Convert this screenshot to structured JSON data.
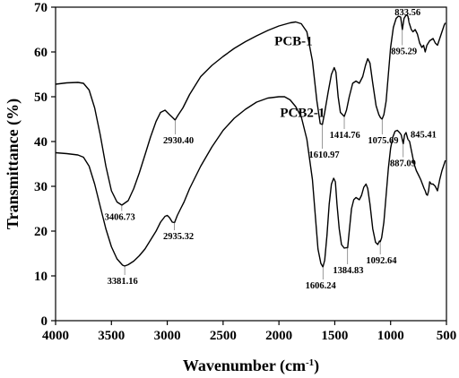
{
  "chart_data": {
    "type": "line",
    "xlabel": "Wavenumber (cm",
    "xlabel_sup": "-1",
    "xlabel_end": ")",
    "ylabel": "Transmittance (%)",
    "xlim": [
      4000,
      500
    ],
    "ylim": [
      0,
      70
    ],
    "x_ticks": [
      {
        "value": 4000,
        "label": "4000"
      },
      {
        "value": 3500,
        "label": "3500"
      },
      {
        "value": 3000,
        "label": "3000"
      },
      {
        "value": 2500,
        "label": "2500"
      },
      {
        "value": 2000,
        "label": "2000"
      },
      {
        "value": 1500,
        "label": "1500"
      },
      {
        "value": 1000,
        "label": "1000"
      },
      {
        "value": 500,
        "label": "500"
      }
    ],
    "y_ticks": [
      {
        "value": 0,
        "label": "0"
      },
      {
        "value": 10,
        "label": "10"
      },
      {
        "value": 20,
        "label": "20"
      },
      {
        "value": 30,
        "label": "30"
      },
      {
        "value": 40,
        "label": "40"
      },
      {
        "value": 50,
        "label": "50"
      },
      {
        "value": 60,
        "label": "60"
      },
      {
        "value": 70,
        "label": "70"
      }
    ],
    "grid": false,
    "legend": "none",
    "series": [
      {
        "name": "PCB-1",
        "label_at": [
          2040,
          61.5
        ],
        "points": [
          [
            4000,
            52.8
          ],
          [
            3900,
            53.1
          ],
          [
            3800,
            53.2
          ],
          [
            3750,
            53.0
          ],
          [
            3700,
            51.5
          ],
          [
            3650,
            47.5
          ],
          [
            3600,
            41.5
          ],
          [
            3550,
            34.5
          ],
          [
            3500,
            29.0
          ],
          [
            3450,
            26.5
          ],
          [
            3407,
            25.8
          ],
          [
            3350,
            26.8
          ],
          [
            3300,
            29.5
          ],
          [
            3250,
            33.0
          ],
          [
            3200,
            37.0
          ],
          [
            3150,
            41.0
          ],
          [
            3100,
            44.5
          ],
          [
            3060,
            46.5
          ],
          [
            3020,
            47.0
          ],
          [
            2980,
            46.0
          ],
          [
            2950,
            45.3
          ],
          [
            2930,
            44.8
          ],
          [
            2900,
            46.0
          ],
          [
            2860,
            47.5
          ],
          [
            2800,
            50.5
          ],
          [
            2700,
            54.5
          ],
          [
            2600,
            57.0
          ],
          [
            2500,
            59.0
          ],
          [
            2400,
            60.8
          ],
          [
            2300,
            62.3
          ],
          [
            2200,
            63.6
          ],
          [
            2100,
            64.8
          ],
          [
            2000,
            65.8
          ],
          [
            1900,
            66.5
          ],
          [
            1850,
            66.7
          ],
          [
            1800,
            66.3
          ],
          [
            1750,
            64.5
          ],
          [
            1700,
            58.0
          ],
          [
            1660,
            49.0
          ],
          [
            1630,
            44.0
          ],
          [
            1611,
            43.8
          ],
          [
            1590,
            46.5
          ],
          [
            1560,
            51.0
          ],
          [
            1530,
            55.0
          ],
          [
            1505,
            56.5
          ],
          [
            1490,
            55.5
          ],
          [
            1470,
            50.0
          ],
          [
            1450,
            46.5
          ],
          [
            1430,
            46.0
          ],
          [
            1415,
            45.6
          ],
          [
            1395,
            47.0
          ],
          [
            1370,
            50.0
          ],
          [
            1340,
            53.0
          ],
          [
            1310,
            53.5
          ],
          [
            1280,
            53.0
          ],
          [
            1250,
            54.5
          ],
          [
            1225,
            57.0
          ],
          [
            1205,
            58.5
          ],
          [
            1185,
            57.5
          ],
          [
            1160,
            53.0
          ],
          [
            1130,
            48.0
          ],
          [
            1105,
            46.0
          ],
          [
            1090,
            45.3
          ],
          [
            1076,
            45.0
          ],
          [
            1060,
            46.0
          ],
          [
            1040,
            49.0
          ],
          [
            1020,
            55.0
          ],
          [
            1000,
            61.0
          ],
          [
            975,
            65.5
          ],
          [
            950,
            67.5
          ],
          [
            930,
            68.0
          ],
          [
            910,
            67.8
          ],
          [
            895,
            65.0
          ],
          [
            880,
            67.5
          ],
          [
            860,
            68.3
          ],
          [
            845,
            68.0
          ],
          [
            834,
            66.5
          ],
          [
            815,
            65.0
          ],
          [
            800,
            64.5
          ],
          [
            780,
            65.0
          ],
          [
            760,
            64.0
          ],
          [
            740,
            62.0
          ],
          [
            720,
            61.0
          ],
          [
            705,
            61.5
          ],
          [
            690,
            60.0
          ],
          [
            675,
            61.5
          ],
          [
            650,
            62.5
          ],
          [
            620,
            63.0
          ],
          [
            600,
            62.0
          ],
          [
            580,
            61.5
          ],
          [
            560,
            63.0
          ],
          [
            540,
            64.5
          ],
          [
            520,
            66.0
          ],
          [
            510,
            66.5
          ]
        ]
      },
      {
        "name": "PCB2-1",
        "label_at": [
          1990,
          45.5
        ],
        "points": [
          [
            4000,
            37.5
          ],
          [
            3900,
            37.3
          ],
          [
            3800,
            37.0
          ],
          [
            3750,
            36.5
          ],
          [
            3700,
            34.5
          ],
          [
            3650,
            30.5
          ],
          [
            3600,
            25.5
          ],
          [
            3550,
            20.5
          ],
          [
            3500,
            16.5
          ],
          [
            3450,
            13.8
          ],
          [
            3400,
            12.4
          ],
          [
            3381,
            12.2
          ],
          [
            3350,
            12.5
          ],
          [
            3300,
            13.3
          ],
          [
            3250,
            14.5
          ],
          [
            3200,
            16.0
          ],
          [
            3150,
            18.0
          ],
          [
            3100,
            20.0
          ],
          [
            3060,
            22.0
          ],
          [
            3020,
            23.3
          ],
          [
            3000,
            23.5
          ],
          [
            2980,
            23.0
          ],
          [
            2955,
            22.0
          ],
          [
            2935,
            21.9
          ],
          [
            2910,
            23.5
          ],
          [
            2880,
            25.0
          ],
          [
            2850,
            26.5
          ],
          [
            2800,
            29.5
          ],
          [
            2700,
            34.5
          ],
          [
            2600,
            38.8
          ],
          [
            2500,
            42.5
          ],
          [
            2400,
            45.2
          ],
          [
            2300,
            47.2
          ],
          [
            2200,
            48.8
          ],
          [
            2100,
            49.7
          ],
          [
            2000,
            50.0
          ],
          [
            1950,
            50.0
          ],
          [
            1900,
            49.3
          ],
          [
            1850,
            47.8
          ],
          [
            1800,
            45.5
          ],
          [
            1750,
            40.5
          ],
          [
            1700,
            31.5
          ],
          [
            1670,
            22.0
          ],
          [
            1650,
            16.0
          ],
          [
            1625,
            12.8
          ],
          [
            1606,
            12.0
          ],
          [
            1590,
            13.5
          ],
          [
            1570,
            19.0
          ],
          [
            1550,
            26.0
          ],
          [
            1530,
            30.5
          ],
          [
            1510,
            31.8
          ],
          [
            1495,
            31.0
          ],
          [
            1480,
            26.0
          ],
          [
            1460,
            20.5
          ],
          [
            1440,
            17.0
          ],
          [
            1415,
            16.2
          ],
          [
            1395,
            16.3
          ],
          [
            1385,
            16.3
          ],
          [
            1370,
            20.0
          ],
          [
            1350,
            25.0
          ],
          [
            1330,
            27.0
          ],
          [
            1310,
            27.5
          ],
          [
            1280,
            27.0
          ],
          [
            1260,
            28.0
          ],
          [
            1240,
            29.8
          ],
          [
            1220,
            30.5
          ],
          [
            1205,
            29.5
          ],
          [
            1185,
            26.0
          ],
          [
            1160,
            20.5
          ],
          [
            1135,
            17.5
          ],
          [
            1115,
            17.0
          ],
          [
            1100,
            17.8
          ],
          [
            1093,
            17.6
          ],
          [
            1080,
            18.5
          ],
          [
            1060,
            22.0
          ],
          [
            1040,
            28.0
          ],
          [
            1020,
            34.0
          ],
          [
            1000,
            38.5
          ],
          [
            980,
            41.0
          ],
          [
            960,
            42.3
          ],
          [
            940,
            42.5
          ],
          [
            920,
            42.0
          ],
          [
            905,
            41.5
          ],
          [
            887,
            39.5
          ],
          [
            875,
            41.5
          ],
          [
            862,
            42.0
          ],
          [
            845,
            40.5
          ],
          [
            830,
            40.0
          ],
          [
            810,
            37.5
          ],
          [
            790,
            35.0
          ],
          [
            770,
            33.5
          ],
          [
            750,
            32.5
          ],
          [
            730,
            31.5
          ],
          [
            715,
            30.5
          ],
          [
            700,
            29.5
          ],
          [
            690,
            29.0
          ],
          [
            680,
            28.2
          ],
          [
            670,
            28.0
          ],
          [
            660,
            29.0
          ],
          [
            650,
            31.0
          ],
          [
            635,
            30.5
          ],
          [
            620,
            30.5
          ],
          [
            600,
            30.0
          ],
          [
            580,
            29.0
          ],
          [
            560,
            31.5
          ],
          [
            540,
            33.5
          ],
          [
            520,
            35.0
          ],
          [
            510,
            35.8
          ]
        ]
      }
    ],
    "peak_annotations": [
      {
        "label": "833.56",
        "x": 834,
        "y": 66.5,
        "lx": 848,
        "ly": 68.2
      },
      {
        "label": "895.29",
        "x": 895,
        "y": 65.0,
        "lx": 880,
        "ly": 59.5
      },
      {
        "label": "2930.40",
        "x": 2930,
        "y": 44.8,
        "lx": 2900,
        "ly": 39.6
      },
      {
        "label": "1414.76",
        "x": 1415,
        "y": 45.6,
        "lx": 1410,
        "ly": 40.8
      },
      {
        "label": "1075.69",
        "x": 1076,
        "y": 45.0,
        "lx": 1066,
        "ly": 39.6
      },
      {
        "label": "1610.97",
        "x": 1611,
        "y": 43.8,
        "lx": 1595,
        "ly": 36.4
      },
      {
        "label": "845.41",
        "x": 845,
        "y": 40.5,
        "lx": 705,
        "ly": 40.9
      },
      {
        "label": "887.09",
        "x": 887,
        "y": 39.5,
        "lx": 890,
        "ly": 34.5
      },
      {
        "label": "3406.73",
        "x": 3407,
        "y": 25.8,
        "lx": 3425,
        "ly": 22.5
      },
      {
        "label": "2935.32",
        "x": 2935,
        "y": 21.9,
        "lx": 2900,
        "ly": 18.2
      },
      {
        "label": "3381.16",
        "x": 3381,
        "y": 12.2,
        "lx": 3400,
        "ly": 8.2
      },
      {
        "label": "1606.24",
        "x": 1606,
        "y": 12.0,
        "lx": 1626,
        "ly": 7.2
      },
      {
        "label": "1384.83",
        "x": 1385,
        "y": 16.3,
        "lx": 1380,
        "ly": 10.6
      },
      {
        "label": "1092.64",
        "x": 1093,
        "y": 17.6,
        "lx": 1082,
        "ly": 12.8
      }
    ]
  }
}
